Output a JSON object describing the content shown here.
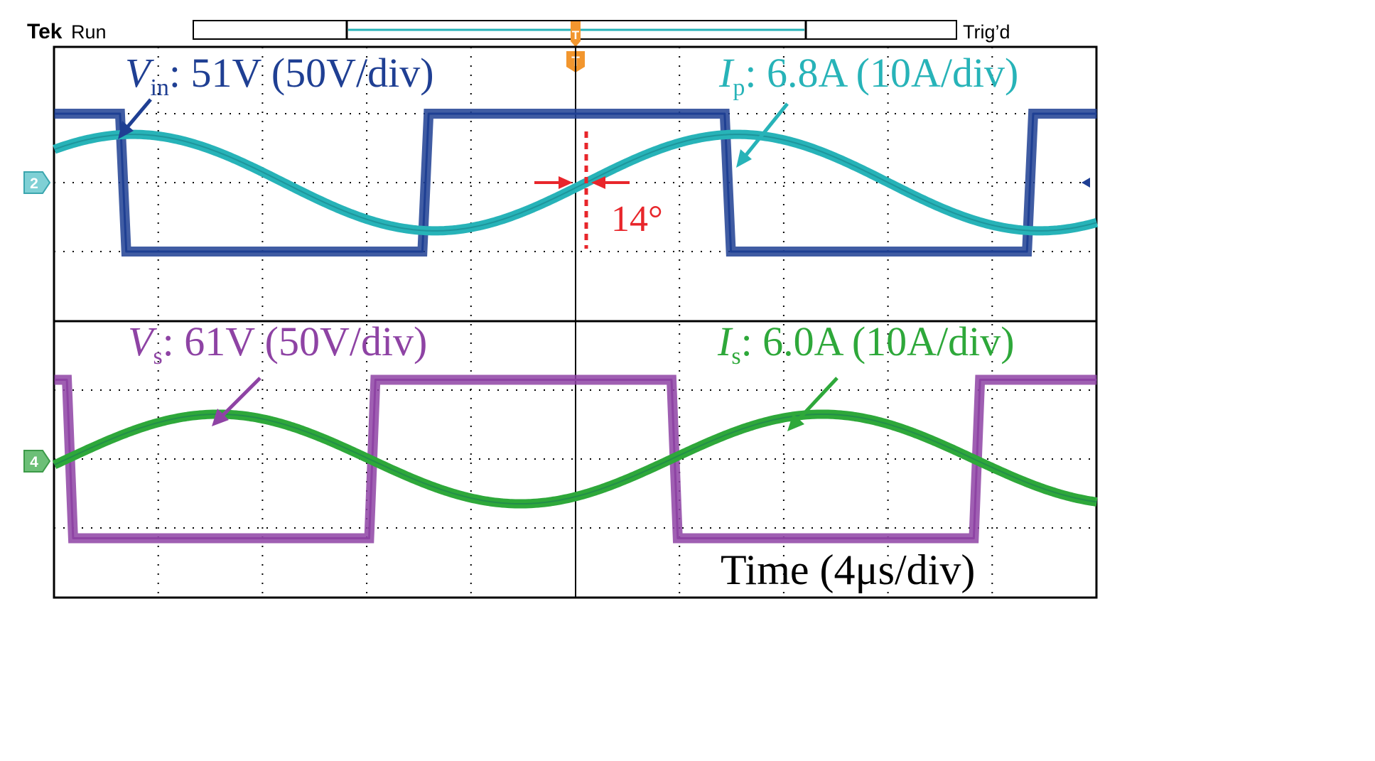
{
  "scope": {
    "brand": "Tek",
    "run_state": "Run",
    "trigger_state": "Trig’d",
    "trigger_marker": "T",
    "channel_markers": [
      "2",
      "4"
    ]
  },
  "colors": {
    "vin": "#1f3f93",
    "ip": "#27b3b8",
    "vs": "#8e43a4",
    "is": "#2ea83a",
    "phase": "#e8262b",
    "trigger": "#f2962e",
    "grid": "#000000"
  },
  "chart_data": {
    "type": "line",
    "title": "",
    "xlabel": "Time (4μs/div)",
    "time_per_div_us": 4,
    "xlim_div": [
      -5,
      5
    ],
    "phase_annotation": "14°",
    "panels": [
      {
        "name": "primary",
        "series": [
          {
            "key": "vin",
            "symbol": "V",
            "subscript": "in",
            "value": ": 51V (50V/div)",
            "kind": "square",
            "amplitude_div": 1.0,
            "period_div": 5.8,
            "edge_div": -4.37,
            "offset_div": 0.0
          },
          {
            "key": "ip",
            "symbol": "I",
            "subscript": "p",
            "value": ": 6.8A (10A/div)",
            "kind": "sine",
            "amplitude_div": 0.7,
            "period_div": 5.8,
            "zero_cross_div": 0.1,
            "offset_div": 0.0
          }
        ]
      },
      {
        "name": "secondary",
        "series": [
          {
            "key": "vs",
            "symbol": "V",
            "subscript": "s",
            "value": ": 61V (50V/div)",
            "kind": "square",
            "amplitude_div": 1.15,
            "period_div": 5.8,
            "edge_div": -4.88,
            "offset_div": 0.0
          },
          {
            "key": "is",
            "symbol": "I",
            "subscript": "s",
            "value": ": 6.0A (10A/div)",
            "kind": "sine",
            "amplitude_div": 0.65,
            "period_div": 5.8,
            "zero_cross_div": -4.88,
            "offset_div": 0.0
          }
        ]
      }
    ]
  }
}
